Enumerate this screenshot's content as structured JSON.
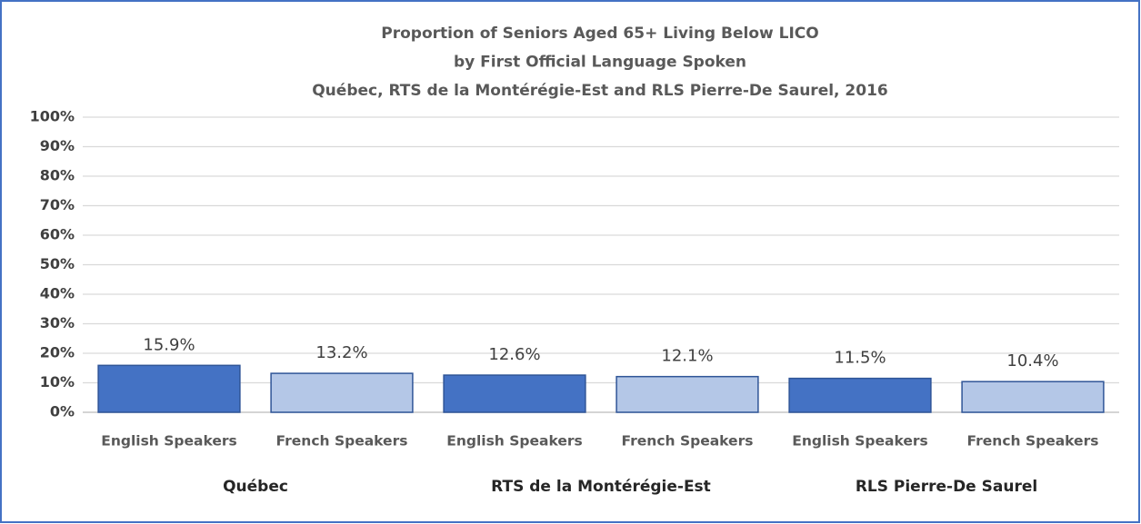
{
  "chart_data": {
    "type": "bar",
    "title": [
      "Proportion of Seniors Aged 65+ Living Below LICO",
      "by First Official Language Spoken",
      "Québec, RTS de la Montérégie-Est and RLS Pierre-De Saurel, 2016"
    ],
    "categories": [
      "English Speakers",
      "French Speakers",
      "English Speakers",
      "French Speakers",
      "English Speakers",
      "French Speakers"
    ],
    "groups": [
      "Québec",
      "RTS de la Montérégie-Est",
      "RLS Pierre-De Saurel"
    ],
    "values": [
      15.9,
      13.2,
      12.6,
      12.1,
      11.5,
      10.4
    ],
    "value_labels": [
      "15.9%",
      "13.2%",
      "12.6%",
      "12.1%",
      "11.5%",
      "10.4%"
    ],
    "colors": [
      "#4472c4",
      "#b4c7e7",
      "#4472c4",
      "#b4c7e7",
      "#4472c4",
      "#b4c7e7"
    ],
    "ylim": [
      0,
      100
    ],
    "yticks": [
      {
        "value": 0,
        "label": "0%"
      },
      {
        "value": 10,
        "label": "10%"
      },
      {
        "value": 20,
        "label": "20%"
      },
      {
        "value": 30,
        "label": "30%"
      },
      {
        "value": 40,
        "label": "40%"
      },
      {
        "value": 50,
        "label": "50%"
      },
      {
        "value": 60,
        "label": "60%"
      },
      {
        "value": 70,
        "label": "70%"
      },
      {
        "value": 80,
        "label": "80%"
      },
      {
        "value": 90,
        "label": "90%"
      },
      {
        "value": 100,
        "label": "100%"
      }
    ],
    "grid": true
  }
}
